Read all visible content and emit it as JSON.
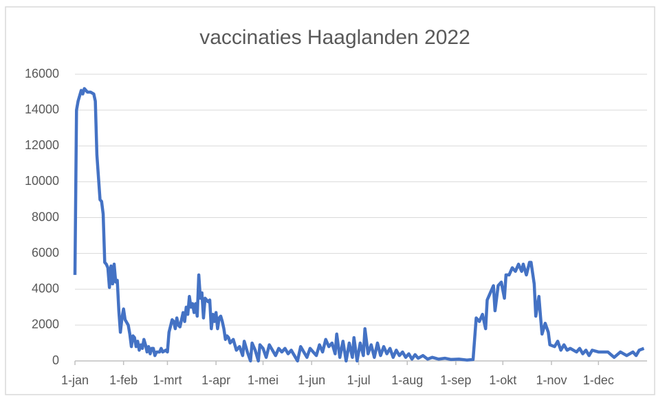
{
  "chart_data": {
    "type": "line",
    "title": "vaccinaties Haaglanden 2022",
    "x": [
      0,
      1,
      2,
      4,
      5,
      6,
      8,
      10,
      12,
      13,
      14,
      16,
      17,
      18,
      19,
      20,
      21,
      22,
      23,
      24,
      25,
      26,
      27,
      28,
      29,
      30,
      31,
      32,
      34,
      35,
      36,
      37,
      38,
      39,
      40,
      41,
      42,
      43,
      44,
      45,
      46,
      47,
      48,
      49,
      50,
      51,
      52,
      54,
      55,
      56,
      58,
      59,
      60,
      62,
      63,
      64,
      65,
      66,
      67,
      69,
      70,
      71,
      72,
      73,
      74,
      75,
      76,
      77,
      78,
      79,
      80,
      81,
      82,
      83,
      84,
      85,
      86,
      87,
      88,
      89,
      90,
      91,
      92,
      93,
      94,
      95,
      96,
      97,
      98,
      99,
      101,
      103,
      105,
      107,
      108,
      110,
      112,
      113,
      115,
      117,
      118,
      120,
      122,
      124,
      126,
      128,
      130,
      132,
      134,
      136,
      138,
      140,
      142,
      144,
      146,
      148,
      150,
      152,
      154,
      156,
      158,
      160,
      162,
      164,
      166,
      167,
      169,
      171,
      173,
      175,
      177,
      178,
      180,
      182,
      184,
      185,
      187,
      189,
      191,
      193,
      195,
      197,
      199,
      201,
      203,
      205,
      207,
      209,
      211,
      213,
      215,
      217,
      219,
      222,
      225,
      228,
      232,
      236,
      240,
      245,
      250,
      254,
      256,
      258,
      260,
      262,
      263,
      265,
      267,
      268,
      270,
      272,
      274,
      275,
      277,
      279,
      281,
      283,
      285,
      286,
      288,
      290,
      291,
      293,
      294,
      296,
      297,
      298,
      300,
      302,
      303,
      306,
      308,
      310,
      312,
      314,
      316,
      320,
      322,
      324,
      326,
      328,
      330,
      334,
      340,
      344,
      348,
      352,
      356,
      358,
      360,
      363
    ],
    "series": [
      {
        "color": "#4472c4",
        "values": [
          4800,
          14000,
          14500,
          15100,
          14900,
          15200,
          15000,
          15000,
          14900,
          14500,
          11500,
          9000,
          8900,
          8200,
          5500,
          5400,
          5200,
          4100,
          5300,
          4300,
          5400,
          4400,
          4500,
          2800,
          1600,
          2400,
          2900,
          2300,
          2000,
          1500,
          800,
          1400,
          1300,
          800,
          1100,
          600,
          900,
          700,
          1200,
          900,
          500,
          800,
          400,
          700,
          700,
          300,
          500,
          500,
          700,
          500,
          600,
          500,
          1600,
          2300,
          2200,
          1800,
          2400,
          2000,
          1900,
          2700,
          2200,
          3000,
          2600,
          3600,
          3000,
          3200,
          2700,
          3200,
          2500,
          4800,
          3500,
          3800,
          2400,
          3500,
          3400,
          3300,
          3400,
          1800,
          2600,
          2200,
          2700,
          1800,
          2400,
          2500,
          2200,
          1800,
          1200,
          1400,
          1300,
          1000,
          1200,
          600,
          800,
          300,
          1100,
          500,
          0,
          1000,
          600,
          0,
          900,
          700,
          200,
          900,
          600,
          300,
          700,
          500,
          700,
          400,
          600,
          300,
          0,
          800,
          500,
          200,
          700,
          500,
          300,
          900,
          500,
          1200,
          800,
          1000,
          400,
          1500,
          200,
          1100,
          0,
          1000,
          200,
          1300,
          0,
          1000,
          300,
          1800,
          400,
          900,
          200,
          1000,
          300,
          800,
          400,
          700,
          200,
          600,
          300,
          500,
          200,
          400,
          100,
          350,
          150,
          300,
          100,
          200,
          100,
          150,
          80,
          100,
          50,
          80,
          2400,
          2200,
          2600,
          1800,
          3400,
          3800,
          4200,
          2800,
          4200,
          4400,
          3500,
          4800,
          4800,
          5200,
          5000,
          5400,
          5000,
          5400,
          4800,
          5500,
          5500,
          4300,
          2500,
          3600,
          2500,
          1500,
          2100,
          1600,
          900,
          800,
          1100,
          600,
          900,
          600,
          700,
          500,
          700,
          400,
          600,
          300,
          600,
          500,
          500,
          200,
          500,
          300,
          500,
          300,
          600,
          700
        ]
      }
    ],
    "xlim": [
      0,
      365
    ],
    "xticks": [
      {
        "value": 0,
        "label": "1-jan"
      },
      {
        "value": 31,
        "label": "1-feb"
      },
      {
        "value": 59,
        "label": "1-mrt"
      },
      {
        "value": 90,
        "label": "1-apr"
      },
      {
        "value": 120,
        "label": "1-mei"
      },
      {
        "value": 151,
        "label": "1-jun"
      },
      {
        "value": 181,
        "label": "1-jul"
      },
      {
        "value": 212,
        "label": "1-aug"
      },
      {
        "value": 243,
        "label": "1-sep"
      },
      {
        "value": 273,
        "label": "1-okt"
      },
      {
        "value": 304,
        "label": "1-nov"
      },
      {
        "value": 334,
        "label": "1-dec"
      }
    ],
    "ylim": [
      0,
      16000
    ],
    "yticks": [
      0,
      2000,
      4000,
      6000,
      8000,
      10000,
      12000,
      14000,
      16000
    ],
    "grid": true
  }
}
